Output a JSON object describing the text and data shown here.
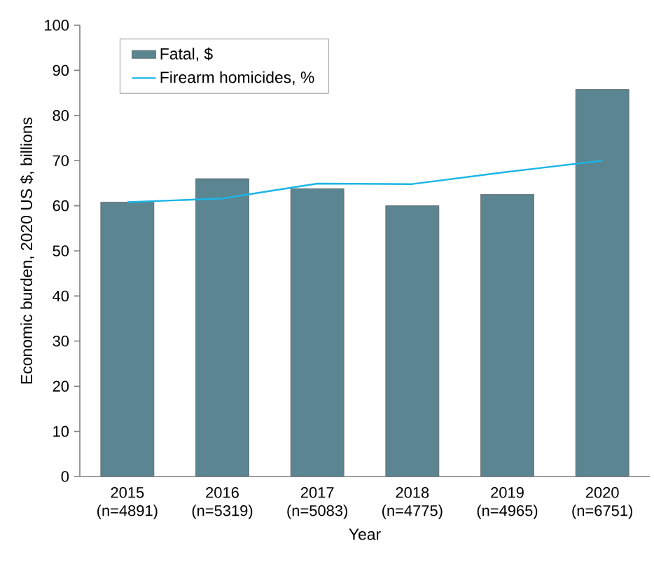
{
  "chart_data": {
    "type": "bar",
    "xlabel": "Year",
    "ylabel": "Economic burden, 2020 US $, billions",
    "categories": [
      "2015 (n=4891)",
      "2016 (n=5319)",
      "2017 (n=5083)",
      "2018 (n=4775)",
      "2019 (n=4965)",
      "2020 (n=6751)"
    ],
    "series": [
      {
        "name": "Fatal, $",
        "color": "#5a8591",
        "values": [
          60.8,
          66.0,
          63.8,
          60.0,
          62.5,
          85.8
        ]
      },
      {
        "name": "Firearm homicides, %",
        "type": "line",
        "color": "#1cb5e6",
        "values": [
          60.8,
          61.6,
          64.9,
          64.8,
          67.5,
          70.0
        ]
      }
    ],
    "ylim": [
      0,
      100
    ],
    "yticks": [
      0,
      10,
      20,
      30,
      40,
      50,
      60,
      70,
      80,
      90,
      100
    ],
    "grid": false,
    "legend": "top left"
  }
}
